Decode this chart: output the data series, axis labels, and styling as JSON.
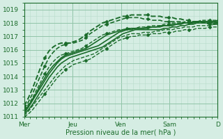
{
  "xlabel": "Pression niveau de la mer( hPa )",
  "bg_color": "#d5ede3",
  "grid_color_minor": "#b8dccb",
  "grid_color_major": "#90c4a8",
  "line_color": "#1a6b2a",
  "ylim": [
    1011,
    1019.5
  ],
  "xlim": [
    0,
    96
  ],
  "day_ticks": [
    0,
    24,
    48,
    72,
    96
  ],
  "day_labels": [
    "Mer",
    "Jeu",
    "Ven",
    "Sam",
    "D"
  ],
  "font_color": "#1a6b2a",
  "series": [
    {
      "y": [
        1011.2,
        1011.5,
        1011.9,
        1012.4,
        1012.9,
        1013.4,
        1013.9,
        1014.3,
        1014.7,
        1015.0,
        1015.2,
        1015.4,
        1015.5,
        1015.6,
        1015.7,
        1015.8,
        1015.9,
        1016.0,
        1016.1,
        1016.2,
        1016.4,
        1016.6,
        1016.8,
        1017.0,
        1017.2,
        1017.3,
        1017.4,
        1017.5,
        1017.5,
        1017.5,
        1017.5,
        1017.5,
        1017.5,
        1017.5,
        1017.6,
        1017.6,
        1017.7,
        1017.7,
        1017.8,
        1017.8,
        1017.9,
        1017.9,
        1018.0,
        1018.0,
        1018.0,
        1018.0,
        1018.0,
        1018.0
      ],
      "style": "solid",
      "marker": null,
      "lw": 1.2
    },
    {
      "y": [
        1011.3,
        1011.7,
        1012.2,
        1012.7,
        1013.2,
        1013.7,
        1014.2,
        1014.6,
        1015.0,
        1015.3,
        1015.5,
        1015.6,
        1015.7,
        1015.8,
        1015.9,
        1016.0,
        1016.1,
        1016.2,
        1016.3,
        1016.5,
        1016.7,
        1016.9,
        1017.1,
        1017.3,
        1017.4,
        1017.5,
        1017.6,
        1017.6,
        1017.6,
        1017.6,
        1017.6,
        1017.7,
        1017.7,
        1017.7,
        1017.8,
        1017.8,
        1017.8,
        1017.9,
        1017.9,
        1018.0,
        1018.0,
        1018.0,
        1018.1,
        1018.1,
        1018.1,
        1018.1,
        1018.1,
        1018.1
      ],
      "style": "solid",
      "marker": null,
      "lw": 1.2
    },
    {
      "y": [
        1011.4,
        1011.8,
        1012.3,
        1012.8,
        1013.4,
        1013.9,
        1014.4,
        1014.8,
        1015.1,
        1015.4,
        1015.6,
        1015.7,
        1015.8,
        1015.9,
        1016.0,
        1016.1,
        1016.3,
        1016.5,
        1016.7,
        1016.9,
        1017.1,
        1017.2,
        1017.3,
        1017.4,
        1017.5,
        1017.5,
        1017.5,
        1017.6,
        1017.6,
        1017.6,
        1017.7,
        1017.7,
        1017.7,
        1017.8,
        1017.8,
        1017.8,
        1017.9,
        1017.9,
        1018.0,
        1018.0,
        1018.0,
        1018.1,
        1018.1,
        1018.1,
        1018.1,
        1018.1,
        1018.1,
        1018.2
      ],
      "style": "solid",
      "marker": null,
      "lw": 1.2
    },
    {
      "y": [
        1011.5,
        1011.9,
        1012.4,
        1013.0,
        1013.6,
        1014.2,
        1014.7,
        1015.1,
        1015.4,
        1015.6,
        1015.7,
        1015.8,
        1015.9,
        1016.0,
        1016.1,
        1016.3,
        1016.5,
        1016.7,
        1016.9,
        1017.1,
        1017.2,
        1017.3,
        1017.4,
        1017.5,
        1017.5,
        1017.6,
        1017.6,
        1017.6,
        1017.7,
        1017.7,
        1017.7,
        1017.8,
        1017.8,
        1017.8,
        1017.9,
        1017.9,
        1018.0,
        1018.0,
        1018.0,
        1018.1,
        1018.1,
        1018.1,
        1018.1,
        1018.2,
        1018.2,
        1018.2,
        1018.2,
        1018.2
      ],
      "style": "dashed",
      "marker": "D",
      "lw": 1.0
    },
    {
      "y": [
        1011.1,
        1011.4,
        1011.8,
        1012.2,
        1012.6,
        1013.0,
        1013.4,
        1013.8,
        1014.2,
        1014.5,
        1014.8,
        1015.0,
        1015.2,
        1015.3,
        1015.4,
        1015.5,
        1015.6,
        1015.7,
        1015.9,
        1016.1,
        1016.3,
        1016.5,
        1016.7,
        1016.9,
        1017.0,
        1017.1,
        1017.2,
        1017.2,
        1017.2,
        1017.3,
        1017.3,
        1017.3,
        1017.4,
        1017.4,
        1017.5,
        1017.5,
        1017.5,
        1017.6,
        1017.6,
        1017.7,
        1017.7,
        1017.7,
        1017.8,
        1017.8,
        1017.8,
        1017.8,
        1017.9,
        1017.9
      ],
      "style": "dashed",
      "marker": null,
      "lw": 1.0
    },
    {
      "y": [
        1011.0,
        1011.2,
        1011.5,
        1011.9,
        1012.3,
        1012.7,
        1013.1,
        1013.5,
        1013.9,
        1014.2,
        1014.5,
        1014.7,
        1014.9,
        1015.0,
        1015.1,
        1015.2,
        1015.3,
        1015.5,
        1015.7,
        1015.9,
        1016.1,
        1016.3,
        1016.5,
        1016.7,
        1016.8,
        1016.9,
        1017.0,
        1017.0,
        1017.1,
        1017.1,
        1017.1,
        1017.2,
        1017.2,
        1017.2,
        1017.3,
        1017.3,
        1017.3,
        1017.4,
        1017.4,
        1017.5,
        1017.5,
        1017.5,
        1017.6,
        1017.6,
        1017.6,
        1017.7,
        1017.7,
        1017.7
      ],
      "style": "dashed",
      "marker": "D",
      "lw": 1.0
    },
    {
      "y": [
        1011.6,
        1012.1,
        1012.7,
        1013.4,
        1014.1,
        1014.8,
        1015.4,
        1015.8,
        1016.1,
        1016.3,
        1016.4,
        1016.5,
        1016.5,
        1016.6,
        1016.7,
        1016.9,
        1017.2,
        1017.4,
        1017.6,
        1017.8,
        1017.9,
        1018.0,
        1018.1,
        1018.2,
        1018.3,
        1018.4,
        1018.4,
        1018.4,
        1018.4,
        1018.3,
        1018.3,
        1018.2,
        1018.2,
        1018.2,
        1018.1,
        1018.1,
        1018.1,
        1018.1,
        1018.1,
        1018.0,
        1018.0,
        1018.0,
        1018.0,
        1018.0,
        1018.0,
        1017.9,
        1017.9,
        1017.9
      ],
      "style": "dashed",
      "marker": "D",
      "lw": 1.2
    },
    {
      "y": [
        1011.8,
        1012.4,
        1013.1,
        1013.9,
        1014.7,
        1015.4,
        1015.9,
        1016.2,
        1016.4,
        1016.5,
        1016.5,
        1016.5,
        1016.6,
        1016.7,
        1016.9,
        1017.1,
        1017.4,
        1017.6,
        1017.8,
        1018.0,
        1018.1,
        1018.2,
        1018.3,
        1018.4,
        1018.5,
        1018.5,
        1018.6,
        1018.6,
        1018.6,
        1018.6,
        1018.6,
        1018.5,
        1018.5,
        1018.5,
        1018.4,
        1018.4,
        1018.4,
        1018.3,
        1018.3,
        1018.2,
        1018.2,
        1018.1,
        1018.1,
        1018.1,
        1018.0,
        1018.0,
        1018.0,
        1018.0
      ],
      "style": "dashed",
      "marker": "D",
      "lw": 1.4
    }
  ]
}
